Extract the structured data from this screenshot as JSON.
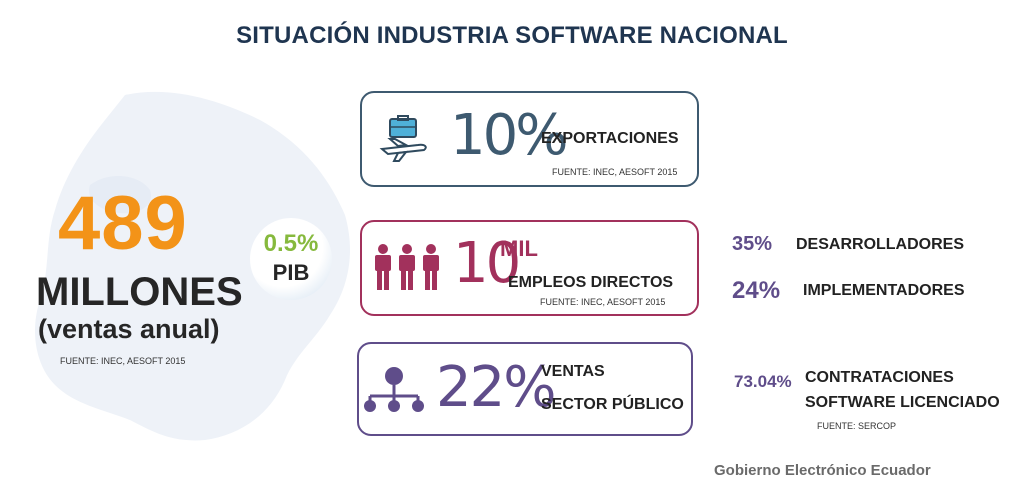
{
  "title": "SITUACIÓN INDUSTRIA SOFTWARE NACIONAL",
  "left": {
    "big_number": "489",
    "unit": "MILLONES",
    "subtitle": "(ventas anual)",
    "source": "FUENTE: INEC, AESOFT 2015"
  },
  "pib": {
    "value": "0.5%",
    "label": "PIB"
  },
  "cards": [
    {
      "icon": "briefcase-airplane-icon",
      "percent": "10%",
      "label": "EXPORTACIONES",
      "source": "FUENTE: INEC, AESOFT 2015",
      "color": "#3e5a70"
    },
    {
      "icon": "people-icon",
      "percent": "10",
      "suffix": "MIL",
      "label": "EMPLEOS DIRECTOS",
      "source": "FUENTE: INEC, AESOFT 2015",
      "color": "#a2315c"
    },
    {
      "icon": "hierarchy-icon",
      "percent": "22%",
      "label_line1": "VENTAS",
      "label_line2": "SECTOR PÚBLICO",
      "color": "#5f4d8a"
    }
  ],
  "stats": [
    {
      "percent": "35%",
      "label": "DESARROLLADORES"
    },
    {
      "percent": "24%",
      "label": "IMPLEMENTADORES"
    },
    {
      "percent": "73.04%",
      "label_line1": "CONTRATACIONES",
      "label_line2": "SOFTWARE LICENCIADO",
      "source": "FUENTE: SERCOP"
    }
  ],
  "footer": "Gobierno Electrónico Ecuador",
  "colors": {
    "accent_orange": "#f39318",
    "accent_green": "#86b93d",
    "title_navy": "#1f3550"
  }
}
